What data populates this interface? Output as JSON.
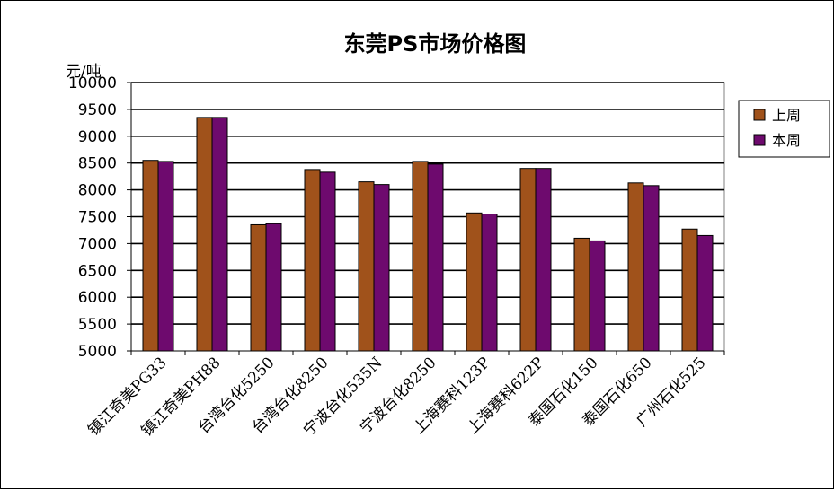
{
  "chart_data": {
    "type": "bar",
    "title": "东莞PS市场价格图",
    "ylabel": "元/吨",
    "xlabel": "",
    "ylim": [
      5000,
      10000
    ],
    "yticks": [
      5000,
      5500,
      6000,
      6500,
      7000,
      7500,
      8000,
      8500,
      9000,
      9500,
      10000
    ],
    "grid": true,
    "legend_position": "right",
    "categories": [
      "镇江奇美PG33",
      "镇江奇美PH88",
      "台湾台化5250",
      "台湾台化8250",
      "宁波台化535N",
      "宁波台化8250",
      "上海赛科123P",
      "上海赛科622P",
      "泰国石化150",
      "泰国石化650",
      "广州石化525"
    ],
    "series": [
      {
        "name": "上周",
        "color": "#a0521b",
        "values": [
          8550,
          9350,
          7350,
          8380,
          8150,
          8530,
          7570,
          8400,
          7100,
          8130,
          7270
        ]
      },
      {
        "name": "本周",
        "color": "#6e0a6e",
        "values": [
          8530,
          9350,
          7370,
          8330,
          8100,
          8480,
          7550,
          8400,
          7050,
          8080,
          7150
        ]
      }
    ]
  }
}
